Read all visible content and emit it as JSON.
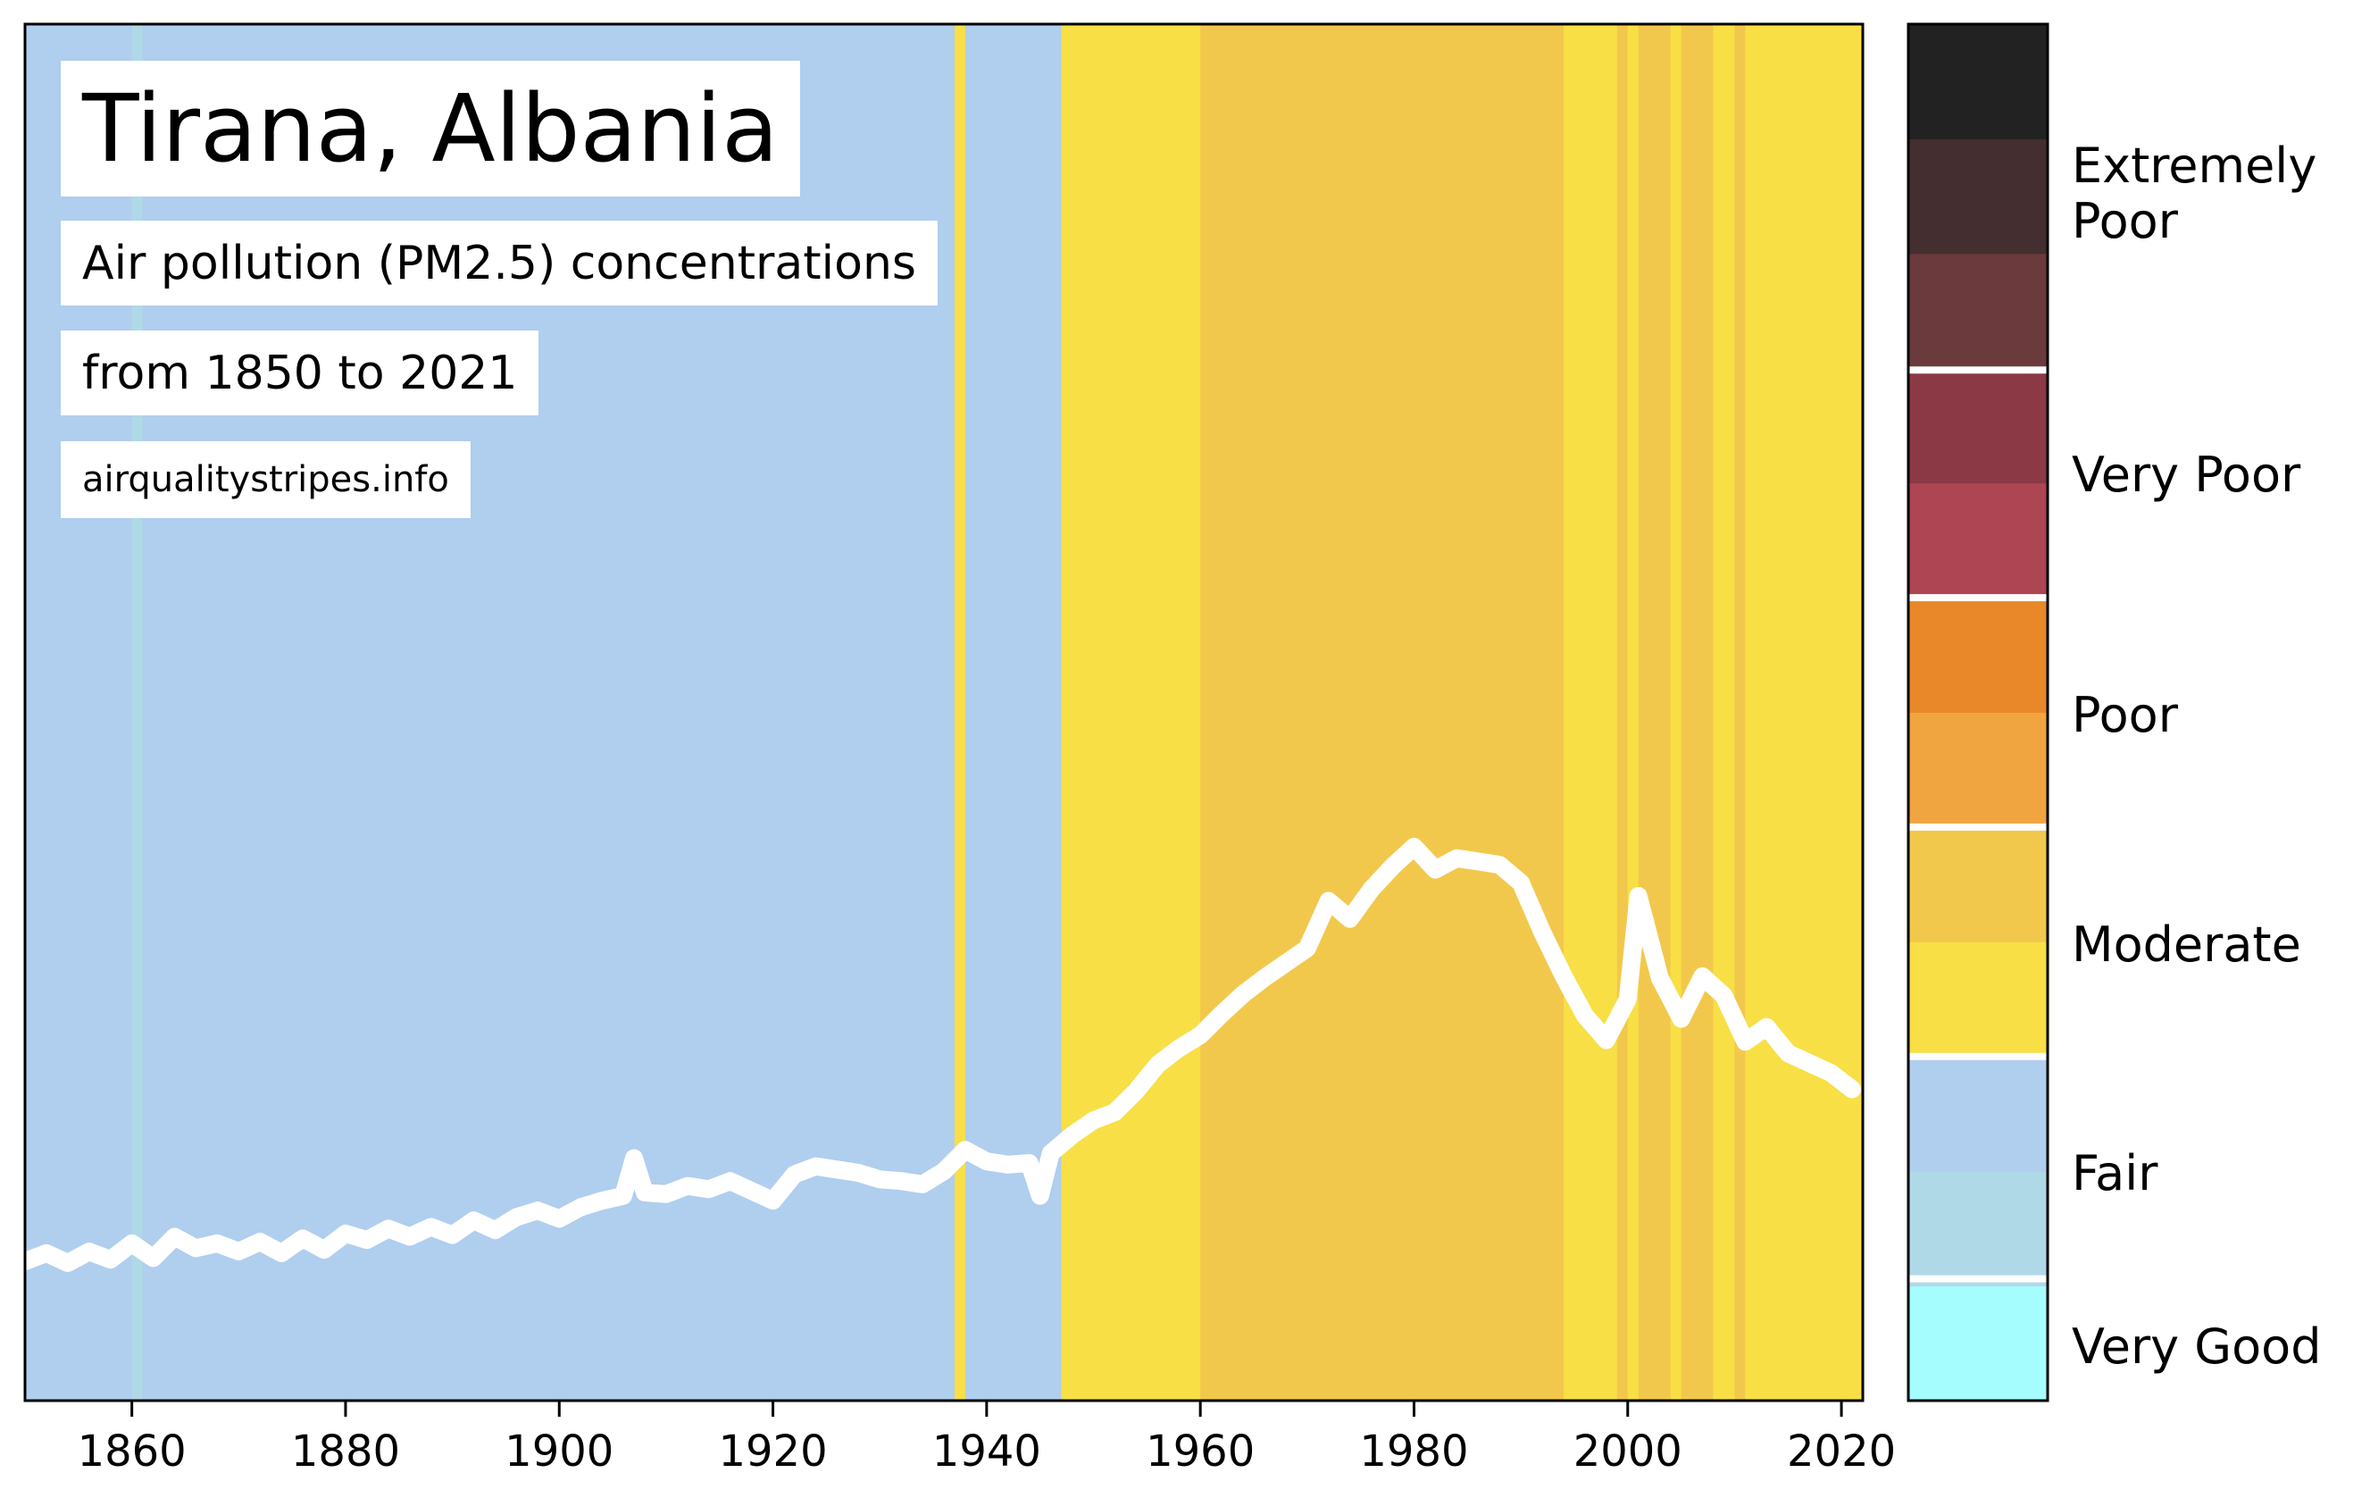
{
  "title": "Tirana, Albania",
  "subtitle": "Air pollution (PM2.5) concentrations",
  "range_text": "from 1850 to 2021",
  "source": "airqualitystripes.info",
  "colors": {
    "very_good": "#a5fdfd",
    "fair_light": "#b0d9e8",
    "fair": "#b0ceee",
    "moderate_light": "#f8df46",
    "moderate": "#f2c84c",
    "poor_light": "#f0a540",
    "poor": "#e88828",
    "very_poor_light": "#ad4552",
    "very_poor": "#8a3945",
    "extremely_poor_light": "#6b3a3c",
    "extremely_poor": "#442e2f",
    "extreme": "#222222",
    "line": "#ffffff"
  },
  "colorbar": {
    "segments": [
      "#a5fdfd",
      "#b0d9e8",
      "#b0ceee",
      "#f8df46",
      "#f2c84c",
      "#f0a540",
      "#e88828",
      "#ad4552",
      "#8a3945",
      "#6b3a3c",
      "#442e2f",
      "#222222"
    ],
    "labels": [
      "Very Good",
      "Fair",
      "Moderate",
      "Poor",
      "Very Poor",
      "Extremely Poor"
    ]
  },
  "chart_data": {
    "type": "line",
    "title": "Tirana, Albania",
    "xlim": [
      1850,
      2022
    ],
    "x_ticks": [
      1860,
      1880,
      1900,
      1920,
      1940,
      1960,
      1980,
      2000,
      2020
    ],
    "grid": false,
    "stripes": [
      {
        "from": 1850,
        "to": 1860,
        "category": "fair"
      },
      {
        "from": 1860,
        "to": 1861,
        "category": "fair_light"
      },
      {
        "from": 1861,
        "to": 1937,
        "category": "fair"
      },
      {
        "from": 1937,
        "to": 1938,
        "category": "moderate_light"
      },
      {
        "from": 1938,
        "to": 1947,
        "category": "fair"
      },
      {
        "from": 1947,
        "to": 1960,
        "category": "moderate_light"
      },
      {
        "from": 1960,
        "to": 1994,
        "category": "moderate"
      },
      {
        "from": 1994,
        "to": 1999,
        "category": "moderate_light"
      },
      {
        "from": 1999,
        "to": 2000,
        "category": "moderate"
      },
      {
        "from": 2000,
        "to": 2001,
        "category": "moderate_light"
      },
      {
        "from": 2001,
        "to": 2004,
        "category": "moderate"
      },
      {
        "from": 2004,
        "to": 2005,
        "category": "moderate_light"
      },
      {
        "from": 2005,
        "to": 2008,
        "category": "moderate"
      },
      {
        "from": 2008,
        "to": 2010,
        "category": "moderate_light"
      },
      {
        "from": 2010,
        "to": 2011,
        "category": "moderate"
      },
      {
        "from": 2011,
        "to": 2022,
        "category": "moderate_light"
      }
    ],
    "series": [
      {
        "x": [
          1850,
          1852,
          1854,
          1856,
          1858,
          1860,
          1862,
          1864,
          1866,
          1868,
          1870,
          1872,
          1874,
          1876,
          1878,
          1880,
          1882,
          1884,
          1886,
          1888,
          1890,
          1892,
          1894,
          1896,
          1898,
          1900,
          1902,
          1904,
          1906,
          1907,
          1908,
          1910,
          1912,
          1914,
          1916,
          1918,
          1920,
          1922,
          1924,
          1926,
          1928,
          1930,
          1932,
          1934,
          1936,
          1938,
          1940,
          1942,
          1944,
          1945,
          1946,
          1948,
          1950,
          1952,
          1954,
          1956,
          1958,
          1960,
          1962,
          1964,
          1966,
          1968,
          1970,
          1972,
          1974,
          1976,
          1978,
          1980,
          1982,
          1984,
          1986,
          1988,
          1990,
          1992,
          1994,
          1996,
          1998,
          2000,
          2001,
          2003,
          2005,
          2007,
          2009,
          2011,
          2013,
          2015,
          2017,
          2019,
          2021
        ],
        "y": [
          8.5,
          9.0,
          8.4,
          9.1,
          8.6,
          9.6,
          8.7,
          10.0,
          9.3,
          9.6,
          9.1,
          9.7,
          9.0,
          9.9,
          9.2,
          10.2,
          9.8,
          10.5,
          10.0,
          10.6,
          10.1,
          11.0,
          10.4,
          11.2,
          11.6,
          11.1,
          11.8,
          12.2,
          12.5,
          14.8,
          12.7,
          12.6,
          13.1,
          12.9,
          13.4,
          12.8,
          12.2,
          13.8,
          14.3,
          14.1,
          13.9,
          13.5,
          13.4,
          13.2,
          14.0,
          15.3,
          14.6,
          14.4,
          14.5,
          12.5,
          15.1,
          16.2,
          17.1,
          17.6,
          18.9,
          20.5,
          21.5,
          22.3,
          23.6,
          24.8,
          25.8,
          26.7,
          27.6,
          30.5,
          29.4,
          31.2,
          32.6,
          33.8,
          32.4,
          33.1,
          32.9,
          32.7,
          31.6,
          28.6,
          25.9,
          23.5,
          22.0,
          24.5,
          30.8,
          25.8,
          23.3,
          25.9,
          24.7,
          21.9,
          22.8,
          21.2,
          20.6,
          20.0,
          19.0
        ]
      }
    ]
  }
}
